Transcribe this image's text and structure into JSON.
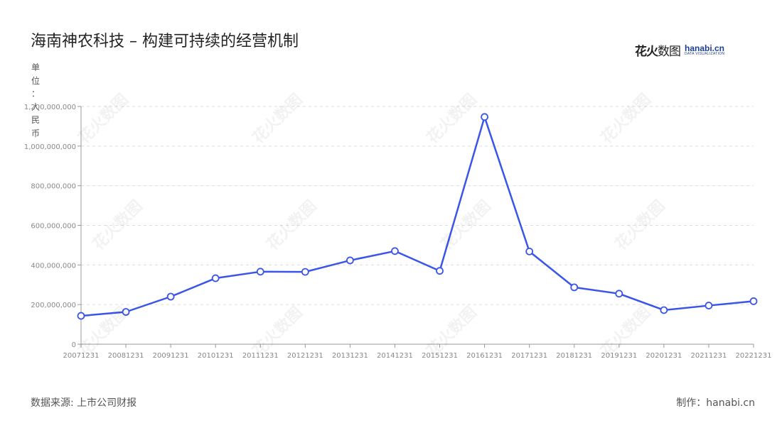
{
  "title": "海南神农科技 – 构建可持续的经营机制",
  "logo": {
    "cn_bold": "花火",
    "cn_thin": "数图",
    "en": "hanabi.cn",
    "en_sub": "DATA VISUALIZATION"
  },
  "unit_label": "单位：人民币",
  "footer": {
    "source": "数据来源: 上市公司财报",
    "maker": "制作：hanabi.cn"
  },
  "watermark": "花火数图",
  "colors": {
    "line": "#3b55e6",
    "marker_fill": "#ffffff",
    "grid": "#dddddd",
    "axis": "#999999"
  },
  "chart_data": {
    "type": "line",
    "x": [
      "20071231",
      "20081231",
      "20091231",
      "20101231",
      "20111231",
      "20121231",
      "20131231",
      "20141231",
      "20151231",
      "20161231",
      "20171231",
      "20181231",
      "20191231",
      "20201231",
      "20211231",
      "20221231"
    ],
    "series": [
      {
        "values": [
          143000000,
          163000000,
          240000000,
          333000000,
          366000000,
          365000000,
          423000000,
          470000000,
          370000000,
          1147000000,
          468000000,
          287000000,
          255000000,
          172000000,
          195000000,
          217000000
        ]
      }
    ],
    "ylim": [
      0,
      1200000000
    ],
    "yticks": [
      0,
      200000000,
      400000000,
      600000000,
      800000000,
      1000000000,
      1200000000
    ],
    "ytick_labels": [
      "0",
      "200,000,000",
      "400,000,000",
      "600,000,000",
      "800,000,000",
      "1,000,000,000",
      "1,200,000,000"
    ],
    "grid": true,
    "ylabel": "单位：人民币"
  }
}
